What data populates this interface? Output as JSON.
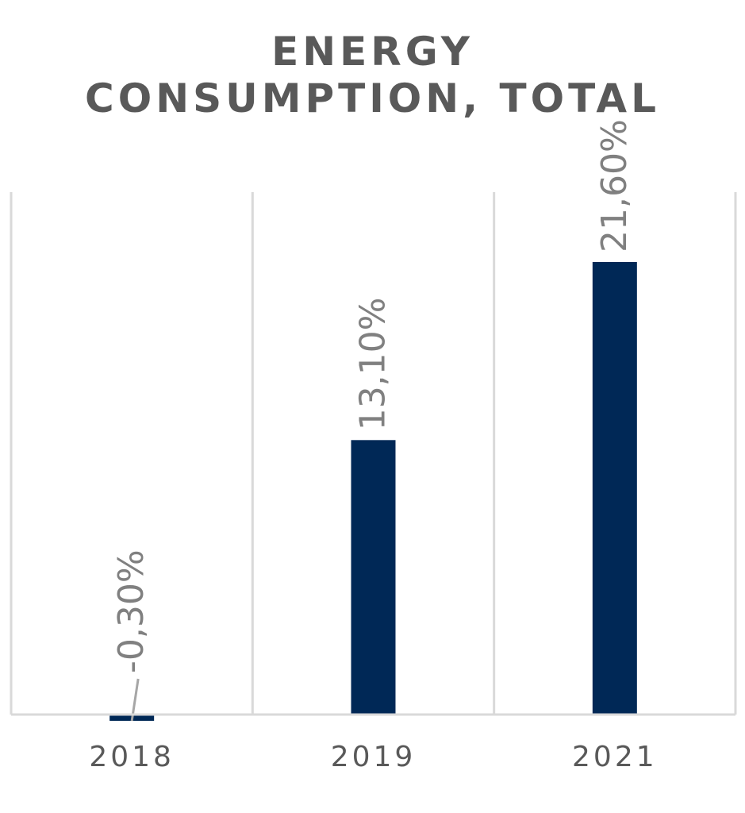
{
  "title": [
    "ENERGY",
    "CONSUMPTION, TOTAL"
  ],
  "colors": {
    "bar": "#002856",
    "gridline": "#d9d9d9",
    "label": "#808080",
    "title": "#595959",
    "tick": "#595959"
  },
  "chart_data": {
    "type": "bar",
    "title": "ENERGY CONSUMPTION, TOTAL",
    "categories": [
      "2018",
      "2019",
      "2021"
    ],
    "values": [
      -0.3,
      13.1,
      21.6
    ],
    "data_labels": [
      "-0,30%",
      "13,10%",
      "21,60%"
    ],
    "xlabel": "",
    "ylabel": "",
    "ylim": [
      -0.3,
      21.6
    ],
    "grid": "vertical separators",
    "legend": "none",
    "data_label_orientation": "rotated 90°"
  }
}
